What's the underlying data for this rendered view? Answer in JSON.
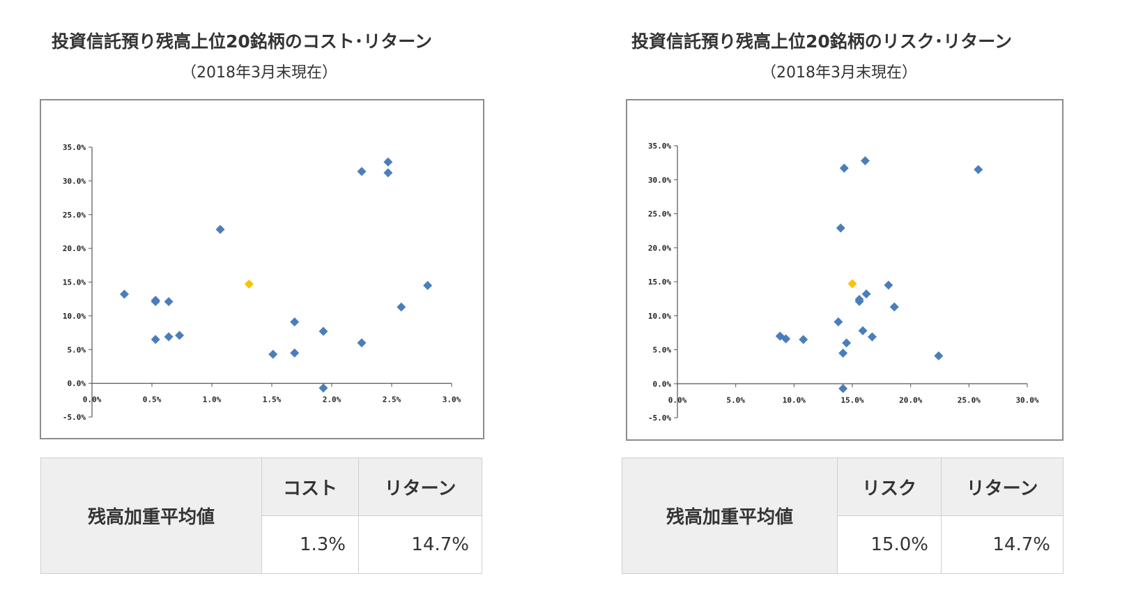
{
  "left": {
    "title": "投資信託預り残高上位20銘柄のコスト･リターン",
    "subtitle": "（2018年3月末現在）",
    "table": {
      "row_label": "残高加重平均値",
      "col1_label": "コスト",
      "col2_label": "リターン",
      "col1_value": "1.3%",
      "col2_value": "14.7%"
    }
  },
  "right": {
    "title": "投資信託預り残高上位20銘柄のリスク･リターン",
    "subtitle": "（2018年3月末現在）",
    "table": {
      "row_label": "残高加重平均値",
      "col1_label": "リスク",
      "col2_label": "リターン",
      "col1_value": "15.0%",
      "col2_value": "14.7%"
    }
  },
  "chart_data": [
    {
      "type": "scatter",
      "title": "投資信託預り残高上位20銘柄のコスト･リターン",
      "xlabel": "",
      "ylabel": "",
      "xlim": [
        0,
        3
      ],
      "ylim": [
        -5,
        35
      ],
      "x_ticks": [
        0,
        0.5,
        1,
        1.5,
        2,
        2.5,
        3
      ],
      "x_tick_labels": [
        "0.0%",
        "0.5%",
        "1.0%",
        "1.5%",
        "2.0%",
        "2.5%",
        "3.0%"
      ],
      "y_ticks": [
        -5,
        0,
        5,
        10,
        15,
        20,
        25,
        30,
        35
      ],
      "y_tick_labels": [
        "-5.0%",
        "0.0%",
        "5.0%",
        "10.0%",
        "15.0%",
        "20.0%",
        "25.0%",
        "30.0%",
        "35.0%"
      ],
      "grid": false,
      "series": [
        {
          "color": "#4a7ebb",
          "marker": "diamond",
          "points": [
            [
              0.27,
              13.2
            ],
            [
              0.53,
              12.3
            ],
            [
              0.53,
              12.1
            ],
            [
              0.64,
              12.1
            ],
            [
              0.53,
              6.5
            ],
            [
              0.64,
              6.9
            ],
            [
              0.73,
              7.1
            ],
            [
              1.07,
              22.8
            ],
            [
              1.51,
              4.3
            ],
            [
              1.69,
              4.5
            ],
            [
              1.69,
              9.1
            ],
            [
              1.93,
              7.7
            ],
            [
              1.93,
              -0.7
            ],
            [
              2.25,
              6.0
            ],
            [
              2.25,
              31.4
            ],
            [
              2.47,
              32.8
            ],
            [
              2.47,
              31.2
            ],
            [
              2.58,
              11.3
            ],
            [
              2.8,
              14.5
            ]
          ]
        },
        {
          "color": "#ffc000",
          "marker": "diamond",
          "points": [
            [
              1.31,
              14.7
            ]
          ]
        }
      ]
    },
    {
      "type": "scatter",
      "title": "投資信託預り残高上位20銘柄のリスク･リターン",
      "xlabel": "",
      "ylabel": "",
      "xlim": [
        0,
        30
      ],
      "ylim": [
        -5,
        35
      ],
      "x_ticks": [
        0,
        5,
        10,
        15,
        20,
        25,
        30
      ],
      "x_tick_labels": [
        "0.0%",
        "5.0%",
        "10.0%",
        "15.0%",
        "20.0%",
        "25.0%",
        "30.0%"
      ],
      "y_ticks": [
        -5,
        0,
        5,
        10,
        15,
        20,
        25,
        30,
        35
      ],
      "y_tick_labels": [
        "-5.0%",
        "0.0%",
        "5.0%",
        "10.0%",
        "15.0%",
        "20.0%",
        "25.0%",
        "30.0%",
        "35.0%"
      ],
      "grid": false,
      "series": [
        {
          "color": "#4a7ebb",
          "marker": "diamond",
          "points": [
            [
              8.8,
              7.0
            ],
            [
              9.3,
              6.6
            ],
            [
              10.8,
              6.5
            ],
            [
              14.0,
              22.9
            ],
            [
              14.3,
              31.7
            ],
            [
              16.1,
              32.8
            ],
            [
              25.8,
              31.5
            ],
            [
              13.8,
              9.1
            ],
            [
              14.5,
              6.0
            ],
            [
              14.2,
              4.5
            ],
            [
              14.2,
              -0.7
            ],
            [
              15.6,
              12.4
            ],
            [
              15.6,
              12.1
            ],
            [
              16.2,
              13.2
            ],
            [
              15.9,
              7.8
            ],
            [
              16.7,
              6.9
            ],
            [
              18.1,
              14.5
            ],
            [
              18.6,
              11.3
            ],
            [
              22.4,
              4.1
            ]
          ]
        },
        {
          "color": "#ffc000",
          "marker": "diamond",
          "points": [
            [
              15.0,
              14.7
            ]
          ]
        }
      ]
    }
  ]
}
